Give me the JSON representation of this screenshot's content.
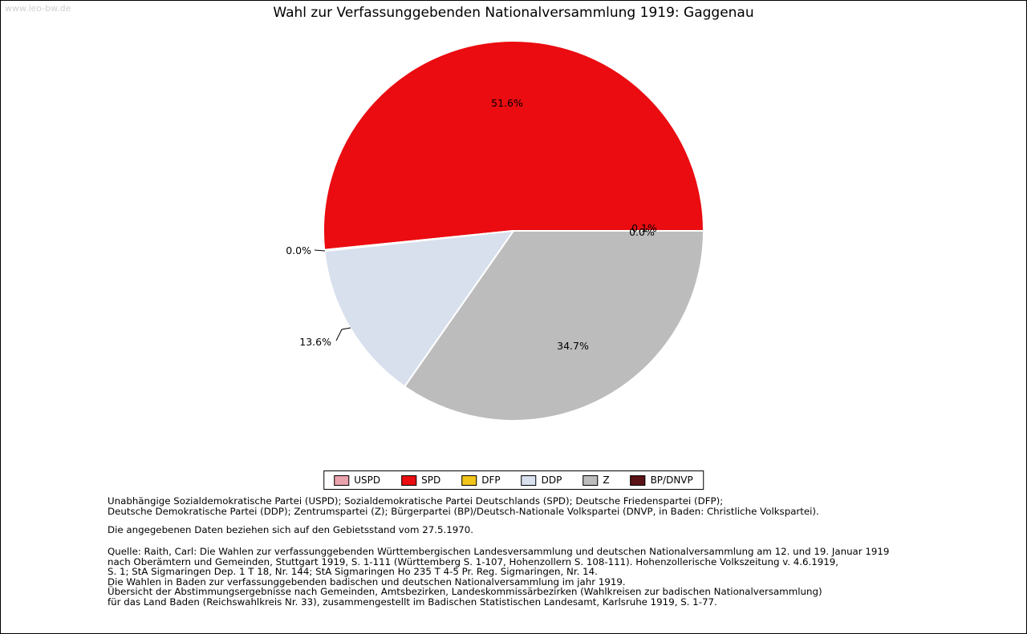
{
  "watermark": "www.leo-bw.de",
  "title": "Wahl zur Verfassunggebenden Nationalversammlung 1919: Gaggenau",
  "chart_data": {
    "type": "pie",
    "title": "Wahl zur Verfassunggebenden Nationalversammlung 1919: Gaggenau",
    "categories": [
      "USPD",
      "SPD",
      "DFP",
      "DDP",
      "Z",
      "BP/DNVP"
    ],
    "values": [
      0.0,
      51.6,
      0.1,
      13.6,
      34.7,
      0.0
    ],
    "percent_labels": [
      "0.0%",
      "51.6%",
      "0.1%",
      "13.6%",
      "34.7%",
      "0.0%"
    ],
    "colors": [
      "#e9a2ac",
      "#ea0c10",
      "#f0c418",
      "#d8e0ee",
      "#bcbcbc",
      "#5a1216"
    ],
    "start_angle": 0,
    "direction": "counterclockwise",
    "legend_position": "bottom",
    "grid": false
  },
  "footer": {
    "party_note_lines": [
      "Unabhängige Sozialdemokratische Partei (USPD); Sozialdemokratische Partei Deutschlands (SPD); Deutsche Friedenspartei (DFP);",
      "Deutsche Demokratische Partei (DDP); Zentrumspartei (Z); Bürgerpartei (BP)/Deutsch-Nationale Volkspartei (DNVP, in Baden: Christliche Volkspartei)."
    ],
    "data_note": "Die angegebenen Daten beziehen sich auf den Gebietsstand vom 27.5.1970.",
    "source_lines": [
      "Quelle: Raith, Carl: Die Wahlen zur verfassunggebenden Württembergischen Landesversammlung und deutschen Nationalversammlung am 12. und 19. Januar 1919",
      "nach Oberämtern und Gemeinden, Stuttgart 1919, S. 1-111 (Württemberg S. 1-107, Hohenzollern S. 108-111). Hohenzollerische Volkszeitung v. 4.6.1919,",
      "S. 1; StA Sigmaringen Dep. 1 T 18, Nr. 144; StA Sigmaringen Ho 235 T 4-5 Pr. Reg. Sigmaringen, Nr. 14.",
      "Die Wahlen in Baden zur verfassunggebenden badischen und deutschen Nationalversammlung im jahr 1919.",
      "Übersicht der Abstimmungsergebnisse nach Gemeinden, Amtsbezirken, Landeskommissärbezirken (Wahlkreisen zur badischen Nationalversammlung)",
      "für das Land Baden (Reichswahlkreis Nr. 33), zusammengestellt im Badischen Statistischen Landesamt, Karlsruhe 1919, S. 1-77."
    ]
  }
}
